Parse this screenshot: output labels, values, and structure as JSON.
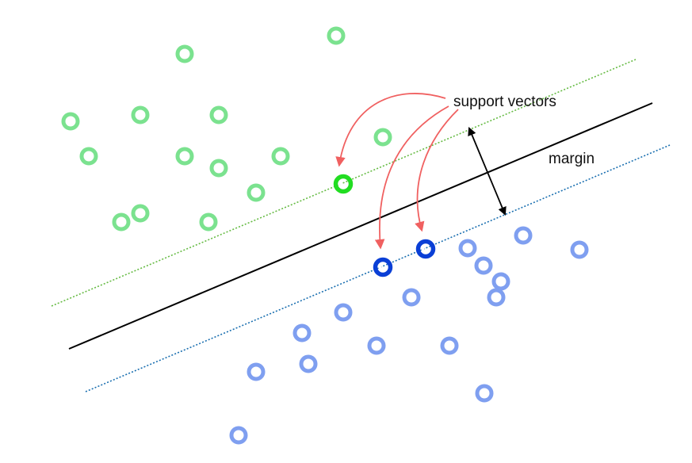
{
  "labels": {
    "support_vectors": "support vectors",
    "margin": "margin"
  },
  "colors": {
    "class_a": "#7be28f",
    "class_a_support": "#22dd22",
    "class_b": "#7f9ff0",
    "class_b_support": "#0a3fd6",
    "hyperplane": "#000000",
    "margin_a": "#66bb44",
    "margin_b": "#1a6fb0",
    "callout_arrow": "#f06060",
    "margin_arrow": "#000000",
    "background": "#ffffff"
  },
  "icons": {
    "data_point": "ring-marker-icon",
    "support_vector": "ring-marker-with-dots-icon"
  }
}
